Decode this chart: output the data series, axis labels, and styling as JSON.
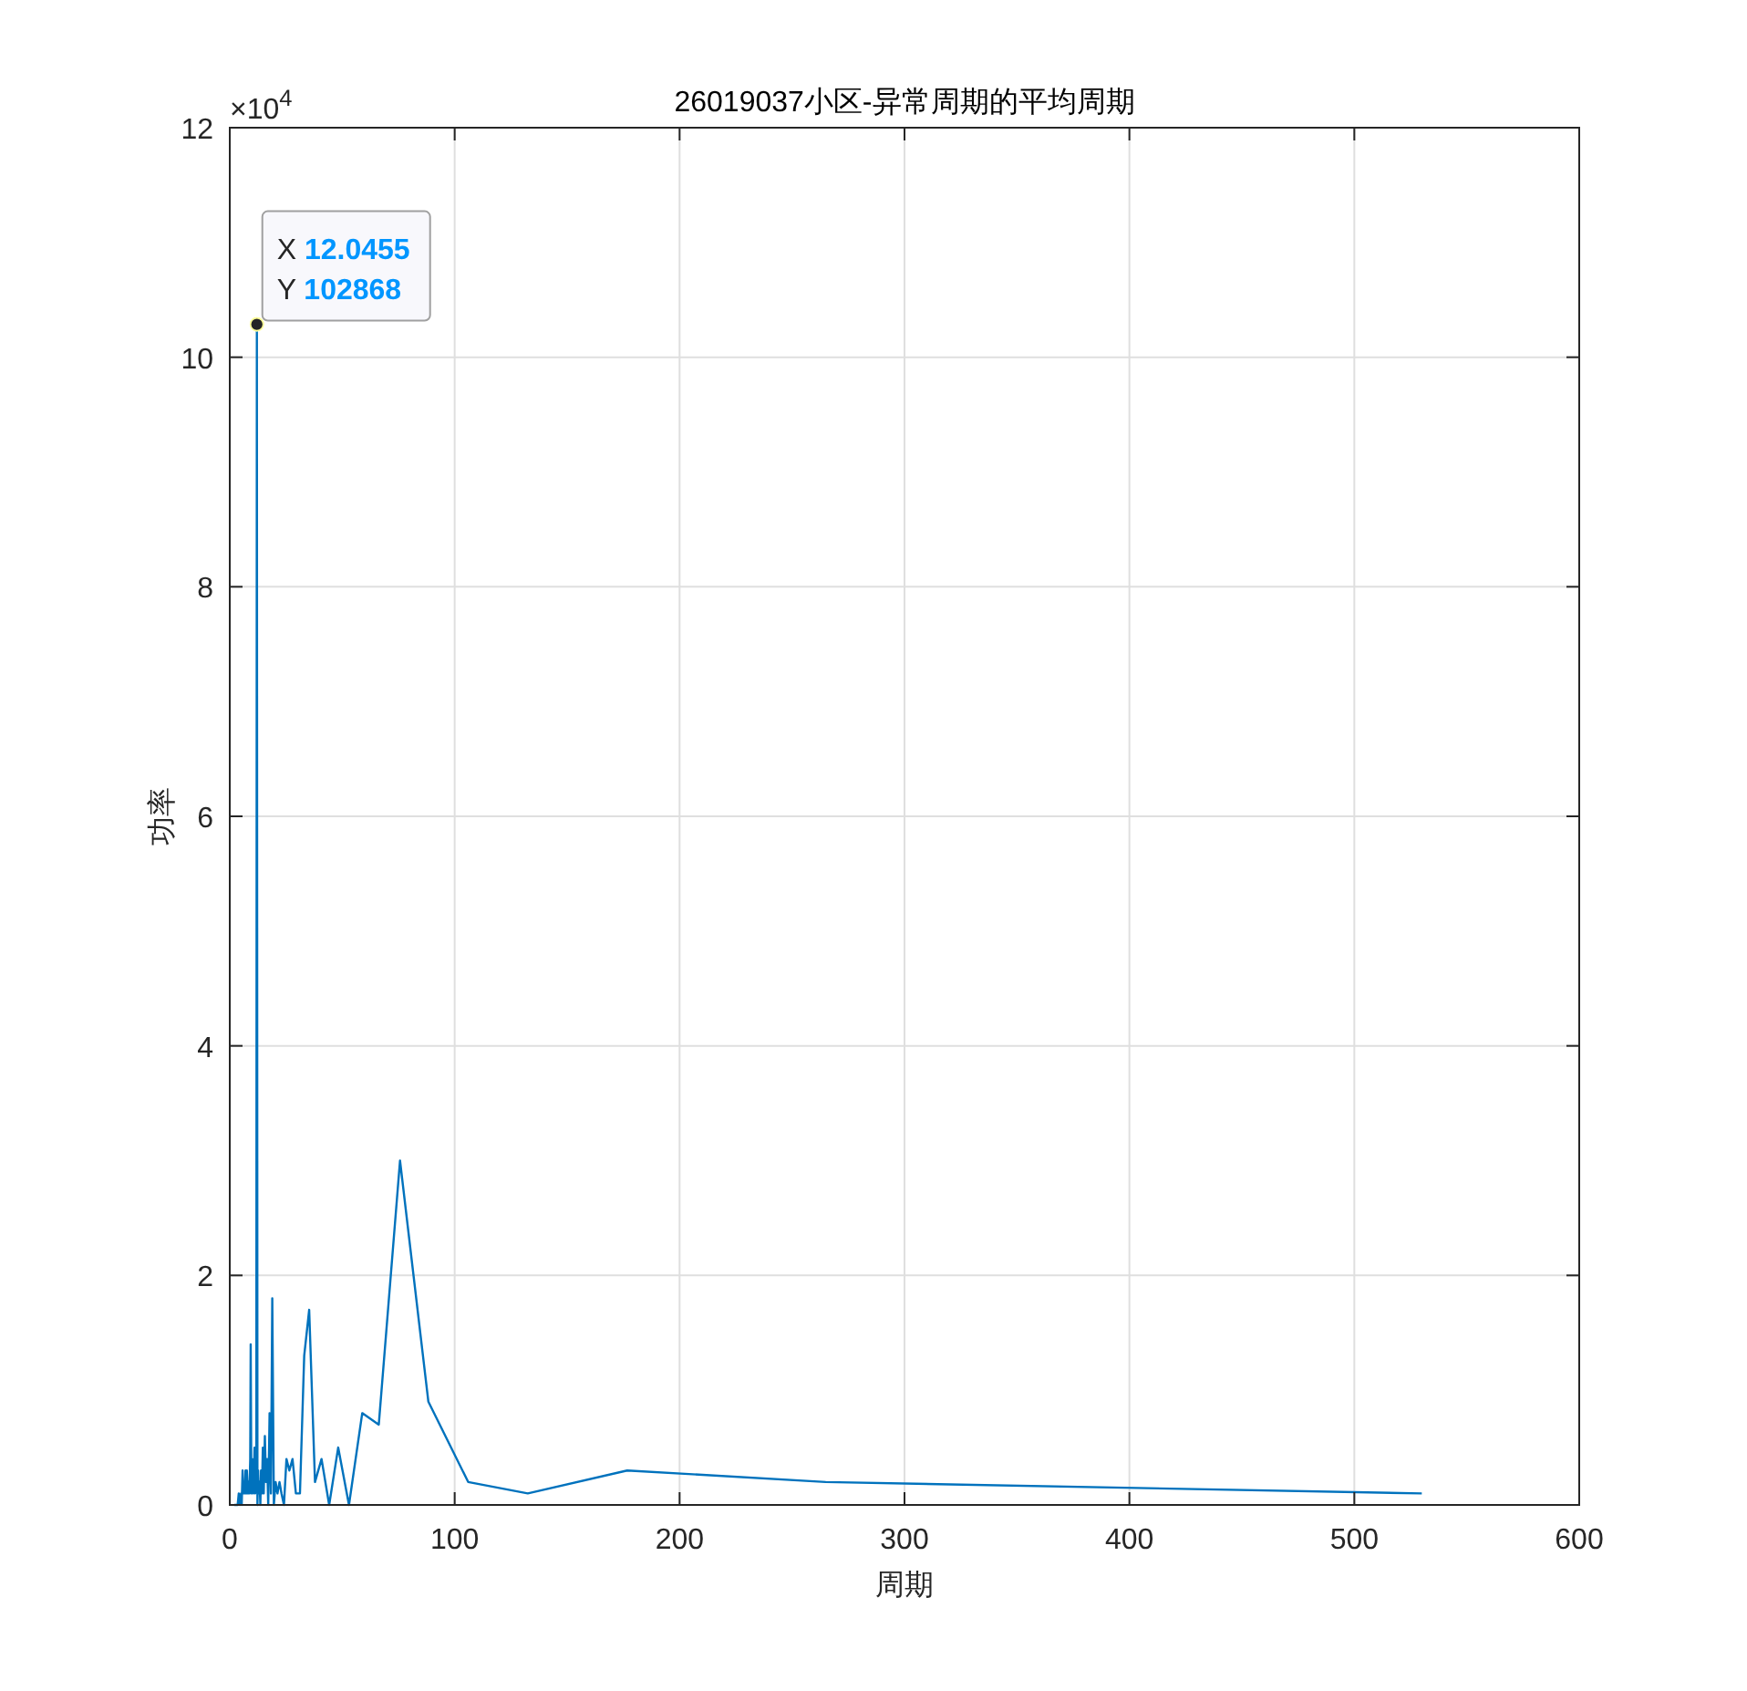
{
  "chart_data": {
    "type": "line",
    "title": "26019037小区-异常周期的平均周期",
    "xlabel": "周期",
    "ylabel": "功率",
    "annotations": [
      "×10$^{4}$",
      {
        "text": "X **12.0455**",
        "x": 12.0455,
        "y": 10.2868
      },
      {
        "text": "Y **102868**",
        "x": 12.0455,
        "y": 10.2868
      }
    ],
    "x": [
      2.0,
      2.5,
      3.0,
      3.5,
      4.0,
      4.5,
      5.0,
      5.3,
      5.7,
      6.0,
      6.3,
      6.6,
      7.0,
      7.3,
      7.6,
      8.0,
      8.3,
      8.7,
      9.1,
      9.3,
      9.6,
      10.0,
      10.4,
      10.8,
      11.0,
      11.3,
      11.8,
      12.0455,
      12.3,
      12.6,
      12.9,
      13.25,
      13.6,
      13.9,
      14.3,
      14.7,
      15.1,
      15.6,
      16.1,
      16.6,
      17.1,
      17.7,
      18.3,
      18.9,
      19.6,
      20.4,
      21.2,
      22.1,
      23.0,
      24.1,
      25.2,
      26.5,
      27.9,
      29.4,
      31.2,
      33.1,
      35.3,
      37.9,
      40.8,
      44.2,
      48.2,
      53.0,
      58.9,
      66.25,
      75.7,
      88.3,
      106,
      132.5,
      176.7,
      265,
      530
    ],
    "values": [
      0,
      0,
      0,
      0,
      0.1,
      0,
      0.1,
      0,
      0.3,
      0.1,
      0.2,
      0.1,
      0.3,
      0.1,
      0.3,
      0.1,
      0.2,
      0.1,
      0.4,
      1.4,
      0.1,
      0.4,
      0.1,
      0.3,
      0.5,
      0.1,
      0.2,
      10.2868,
      0,
      0.3,
      0.1,
      0.2,
      0,
      0.3,
      0.1,
      0.5,
      0.1,
      0.6,
      0.2,
      0.4,
      0,
      0.8,
      0.1,
      1.8,
      0,
      0.2,
      0.1,
      0.2,
      0.1,
      0,
      0.4,
      0.3,
      0.4,
      0.1,
      0.1,
      1.3,
      1.7,
      0.2,
      0.4,
      0,
      0.5,
      0,
      0.8,
      0.7,
      3.0,
      0.9,
      0.2,
      0.1,
      0.3,
      0.2,
      0.1
    ],
    "color": "#0072bd",
    "xlim": [
      0,
      600
    ],
    "ylim": [
      0,
      12
    ],
    "xticks": [
      0,
      100,
      200,
      300,
      400,
      500,
      600
    ],
    "yticks": [
      0,
      2,
      4,
      6,
      8,
      10,
      12
    ],
    "grid": true
  }
}
